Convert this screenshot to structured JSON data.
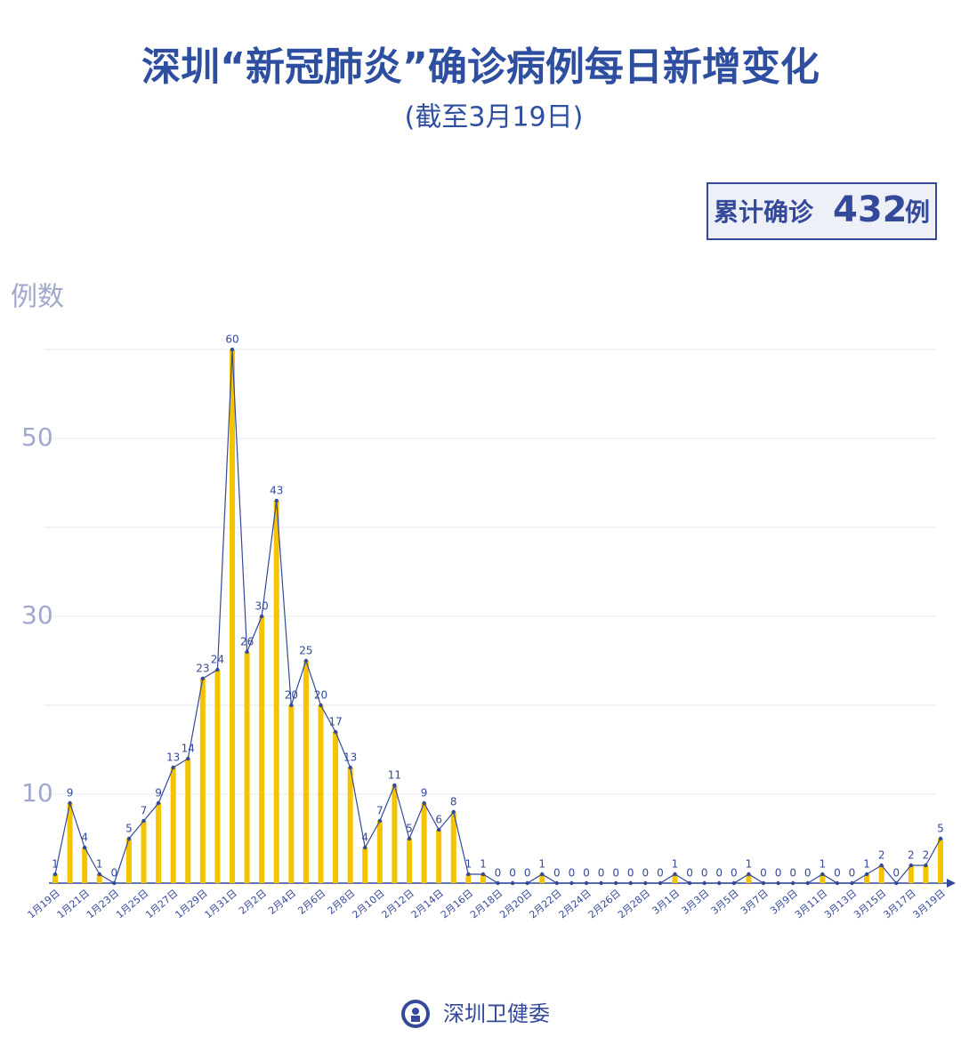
{
  "chart_data": {
    "type": "bar-line",
    "title": "深圳“新冠肺炎”确诊病例每日新增变化",
    "subtitle": "(截至3月19日)",
    "total_box": {
      "prefix": "累计确诊",
      "value": "432",
      "suffix": "例"
    },
    "y_label": "例数",
    "categories": [
      "1月19日",
      null,
      "1月21日",
      null,
      "1月23日",
      null,
      "1月25日",
      null,
      "1月27日",
      null,
      "1月29日",
      null,
      "1月31日",
      null,
      "2月2日",
      null,
      "2月4日",
      null,
      "2月6日",
      null,
      "2月8日",
      null,
      "2月10日",
      null,
      "2月12日",
      null,
      "2月14日",
      null,
      "2月16日",
      null,
      "2月18日",
      null,
      "2月20日",
      null,
      "2月22日",
      null,
      "2月24日",
      null,
      "2月26日",
      null,
      "2月28日",
      null,
      "3月1日",
      null,
      "3月3日",
      null,
      "3月5日",
      null,
      "3月7日",
      null,
      "3月9日",
      null,
      "3月11日",
      null,
      "3月13日",
      null,
      "3月15日",
      null,
      "3月17日",
      null,
      "3月19日"
    ],
    "values": [
      1,
      9,
      4,
      1,
      0,
      5,
      7,
      9,
      13,
      14,
      23,
      24,
      60,
      26,
      30,
      43,
      20,
      25,
      20,
      17,
      13,
      4,
      7,
      11,
      5,
      9,
      6,
      8,
      1,
      1,
      0,
      0,
      0,
      1,
      0,
      0,
      0,
      0,
      0,
      0,
      0,
      0,
      1,
      0,
      0,
      0,
      0,
      1,
      0,
      0,
      0,
      0,
      1,
      0,
      0,
      1,
      2,
      0,
      2,
      2,
      5
    ],
    "bar_color": "#f5c400",
    "line_color": "#34499a",
    "ylim": [
      0,
      60
    ],
    "yticks": [
      10,
      30,
      50
    ],
    "minor_grid": [
      20,
      40,
      60
    ],
    "grid": true,
    "footer": "深圳卫健委"
  }
}
